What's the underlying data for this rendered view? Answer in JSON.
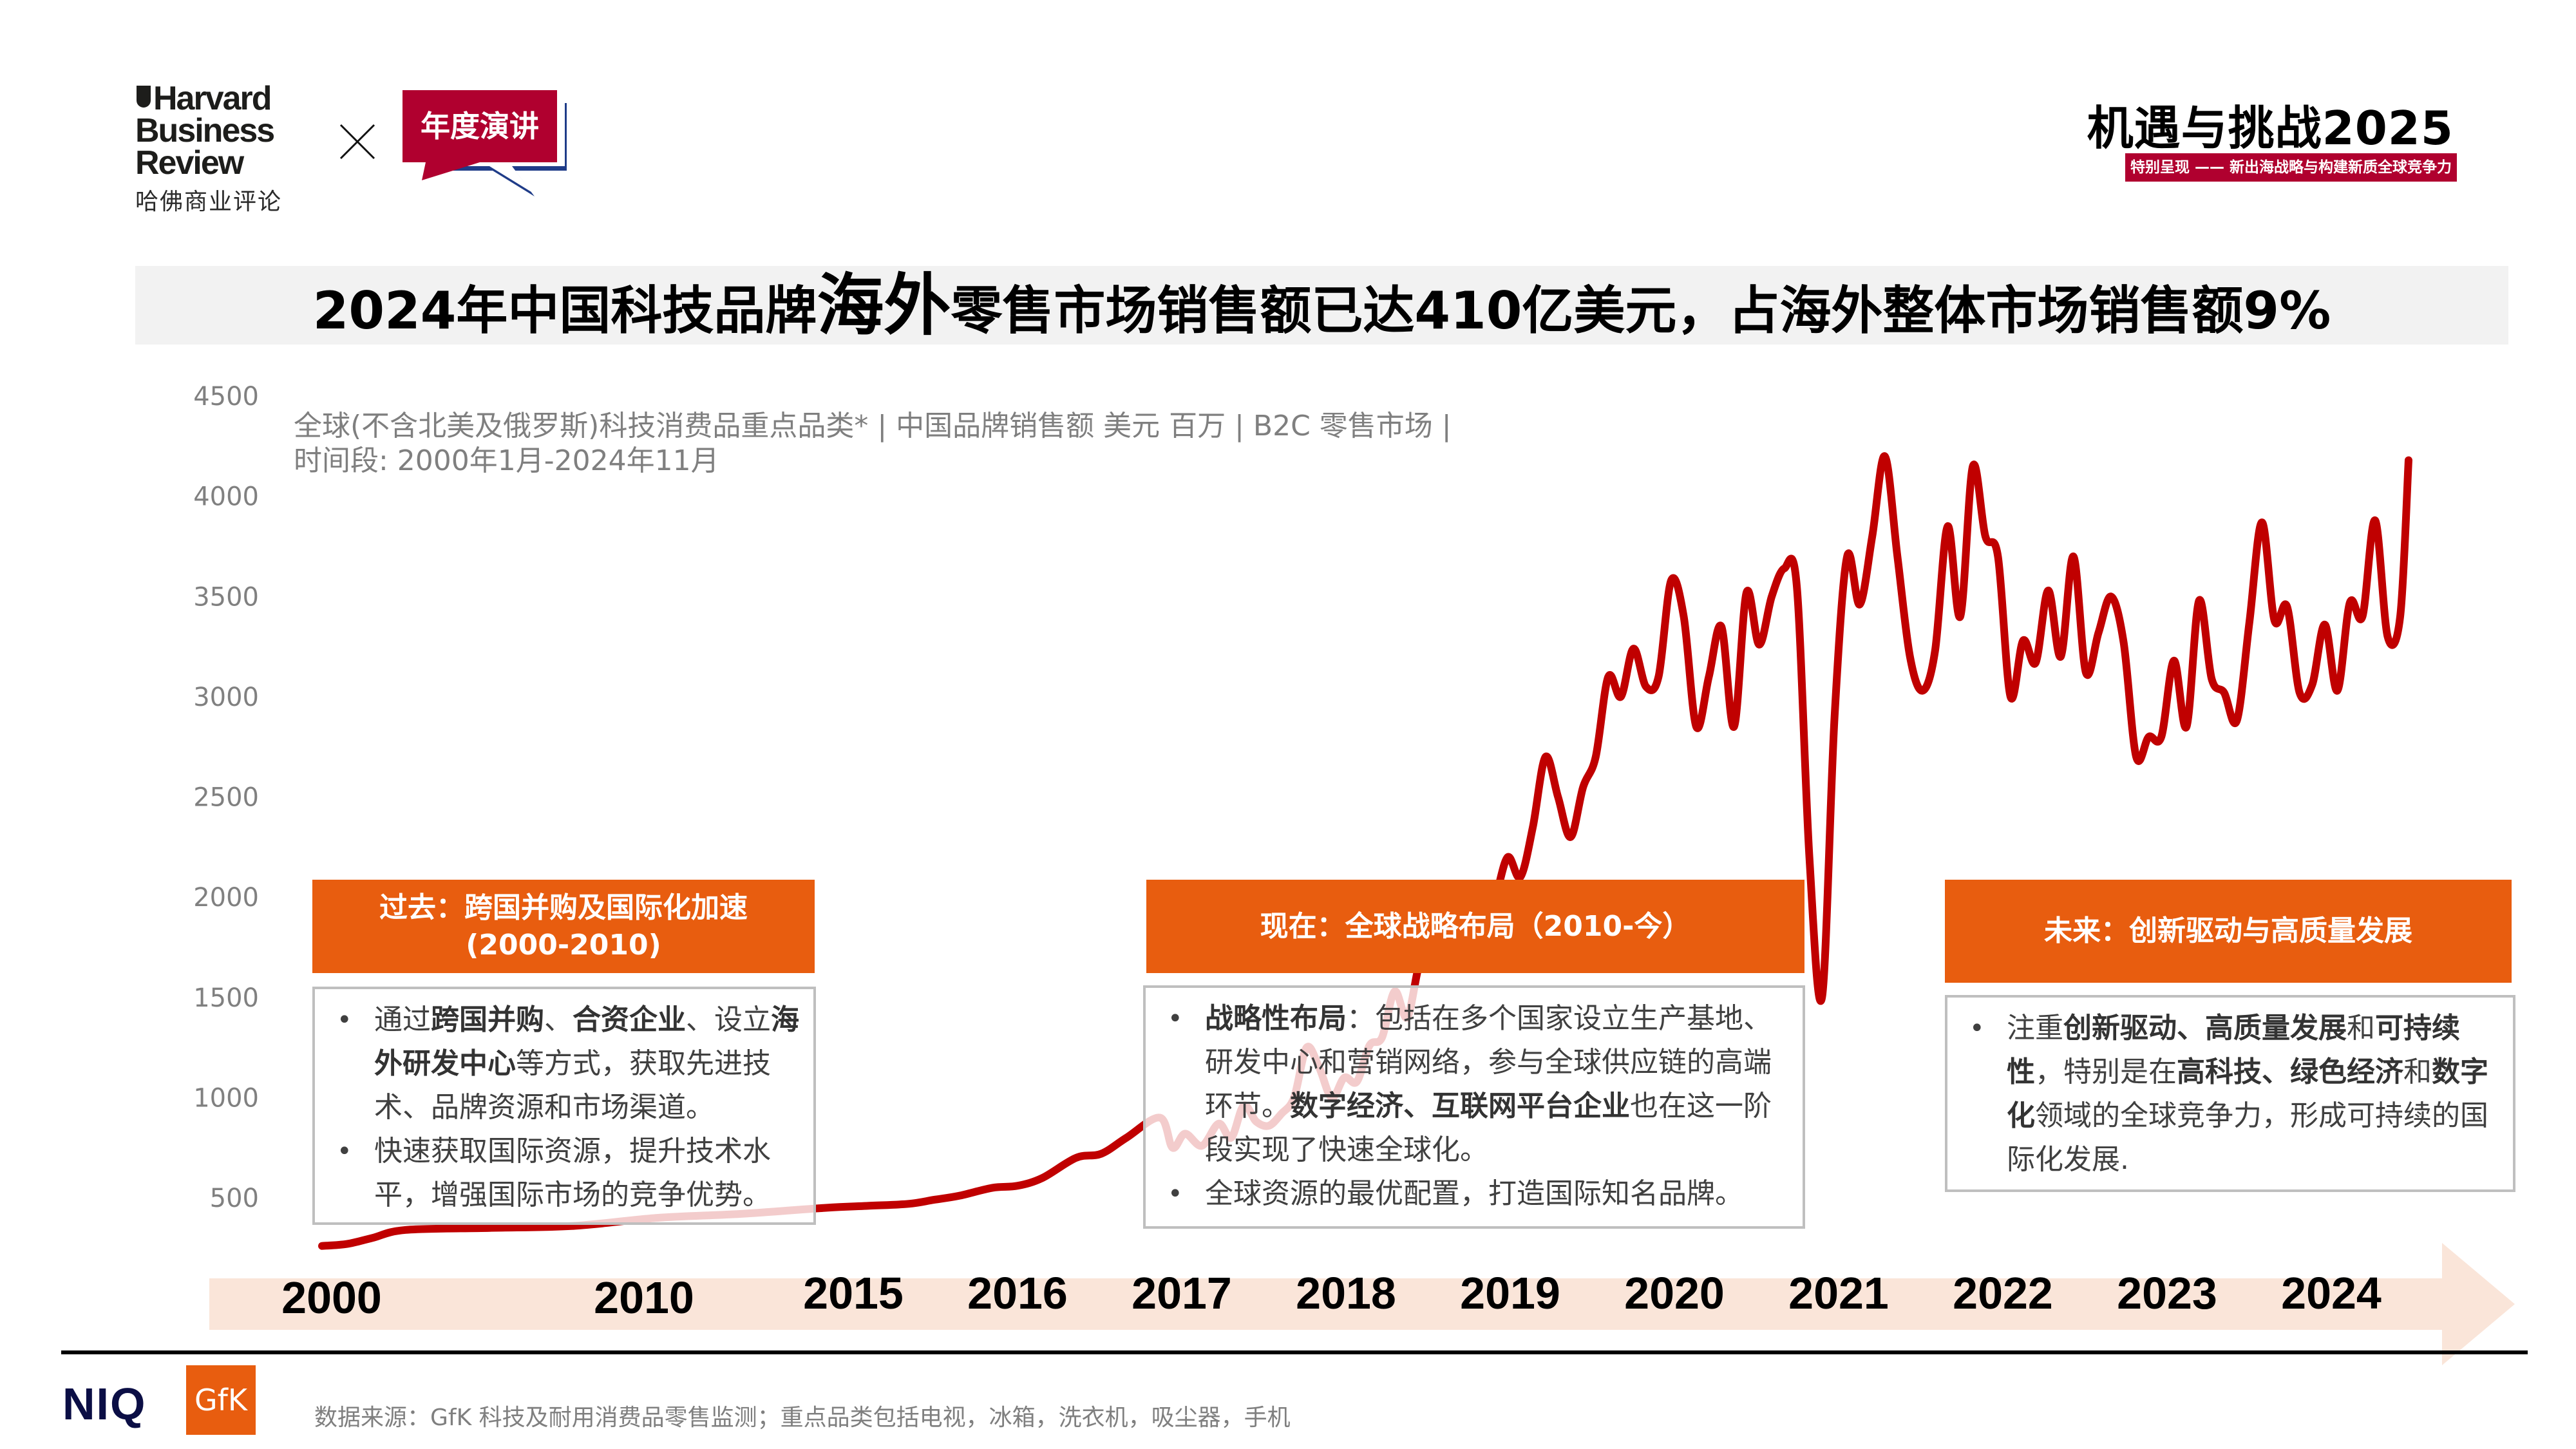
{
  "header": {
    "hbr_logo": [
      "Harvard",
      "Business",
      "Review"
    ],
    "hbr_cn": "哈佛商业评论",
    "times_symbol": "×",
    "speech_label": "年度演讲",
    "brand_title": "机遇与挑战2025",
    "brand_subtitle": "特别呈现 —— 新出海战略与构建新质全球竞争力"
  },
  "title": {
    "part1": "2024年中国科技品牌",
    "emph": "海外",
    "part2": "零售市场销售额已达410亿美元，占海外整体市场销售额9%"
  },
  "chart_data": {
    "type": "line",
    "title": "2024年中国科技品牌海外零售市场销售额已达410亿美元，占海外整体市场销售额9%",
    "subtitle_lines": [
      "全球(不含北美及俄罗斯)科技消费品重点品类* | 中国品牌销售额 美元 百万 | B2C 零售市场 |",
      "时间段: 2000年1月-2024年11月"
    ],
    "xlabel": "",
    "ylabel": "",
    "ylim": [
      500,
      4500
    ],
    "yticks": [
      "4500",
      "4000",
      "3500",
      "3000",
      "2500",
      "2000",
      "1500",
      "1000",
      "500"
    ],
    "ytick_values": [
      4500,
      4000,
      3500,
      3000,
      2500,
      2000,
      1500,
      1000,
      500
    ],
    "x_categories": [
      "2000",
      "2010",
      "2015",
      "2016",
      "2017",
      "2018",
      "2019",
      "2020",
      "2021",
      "2022",
      "2023",
      "2024"
    ],
    "grid": false,
    "series": [
      {
        "name": "中国品牌销售额",
        "color": "#c00000",
        "x": [
          0,
          0.3,
          0.6,
          1,
          2,
          3,
          4,
          5,
          6,
          6.5,
          7,
          7.3,
          7.6,
          8,
          8.3,
          8.6,
          9,
          9.3,
          9.6,
          10,
          10.15,
          10.3,
          10.5,
          10.7,
          10.85,
          11,
          11.15,
          11.3,
          11.45,
          11.6,
          11.75,
          11.9,
          12.05,
          12.2,
          12.35,
          12.5,
          12.65,
          12.8,
          12.95,
          13.1,
          13.25,
          13.4,
          13.55,
          13.7,
          13.85,
          14,
          14.15,
          14.3,
          14.45,
          14.6,
          14.75,
          14.9,
          15.05,
          15.2,
          15.35,
          15.5,
          15.65,
          15.8,
          15.95,
          16.1,
          16.25,
          16.4,
          16.55,
          16.7,
          16.85,
          17,
          17.15,
          17.3,
          17.45,
          17.6,
          17.75,
          17.9,
          18.05,
          18.2,
          18.35,
          18.5,
          18.65,
          18.8,
          18.95,
          19.1,
          19.25,
          19.4,
          19.55,
          19.7,
          19.85,
          20,
          20.15,
          20.3,
          20.45,
          20.6,
          20.75,
          20.9,
          21.05,
          21.2,
          21.35,
          21.5,
          21.65,
          21.8,
          21.95,
          22.1,
          22.25,
          22.4,
          22.55,
          22.7,
          22.85,
          23,
          23.15,
          23.3,
          23.45,
          23.6,
          23.75,
          23.9,
          24.05,
          24.2,
          24.35,
          24.5,
          24.65,
          24.8,
          24.9
        ],
        "values": [
          260,
          270,
          300,
          340,
          350,
          360,
          400,
          420,
          450,
          460,
          470,
          490,
          510,
          550,
          560,
          600,
          700,
          720,
          800,
          900,
          750,
          820,
          760,
          870,
          800,
          960,
          880,
          860,
          920,
          1000,
          1250,
          1150,
          1000,
          1100,
          1080,
          1260,
          1300,
          1530,
          1400,
          1670,
          1700,
          1980,
          1850,
          1660,
          1900,
          2000,
          2200,
          2100,
          2350,
          2700,
          2500,
          2300,
          2550,
          2700,
          3100,
          3000,
          3240,
          3050,
          3100,
          3580,
          3400,
          2850,
          3100,
          3350,
          2850,
          3520,
          3260,
          3500,
          3640,
          3550,
          2200,
          1500,
          2900,
          3700,
          3460,
          3800,
          4200,
          3700,
          3200,
          3030,
          3230,
          3850,
          3400,
          4150,
          3800,
          3700,
          3000,
          3280,
          3170,
          3530,
          3200,
          3700,
          3120,
          3320,
          3500,
          3270,
          2700,
          2800,
          2800,
          3180,
          2850,
          3480,
          3090,
          3020,
          2880,
          3370,
          3870,
          3380,
          3450,
          3020,
          3060,
          3360,
          3030,
          3470,
          3400,
          3880,
          3300,
          3400,
          4180
        ]
      }
    ],
    "annotations": [
      {
        "heading": [
          "过去：跨国并购及国际化加速",
          "(2000-2010)"
        ],
        "bullets": [
          [
            {
              "t": "通过"
            },
            {
              "t": "跨国并购",
              "b": true
            },
            {
              "t": "、"
            },
            {
              "t": "合资企业",
              "b": true
            },
            {
              "t": "、设立"
            },
            {
              "t": "海外研发中心",
              "b": true
            },
            {
              "t": "等方式，获取先进技术、品牌资源和市场渠道。"
            }
          ],
          [
            {
              "t": "快速获取国际资源，提升技术水平，增强国际市场的竞争优势。"
            }
          ]
        ]
      },
      {
        "heading": [
          "现在：全球战略布局（2010-今）"
        ],
        "bullets": [
          [
            {
              "t": "战略性布局",
              "b": true
            },
            {
              "t": "：包括在多个国家设立生产基地、研发中心和营销网络，参与全球供应链的高端环节。"
            },
            {
              "t": "数字经济、互联网平台企业",
              "b": true
            },
            {
              "t": "也在这一阶段实现了快速全球化。"
            }
          ],
          [
            {
              "t": "全球资源的最优配置，打造国际知名品牌。"
            }
          ]
        ]
      },
      {
        "heading": [
          "未来：创新驱动与高质量发展"
        ],
        "bullets": [
          [
            {
              "t": "注重"
            },
            {
              "t": "创新驱动、高质量发展",
              "b": true
            },
            {
              "t": "和"
            },
            {
              "t": "可持续性",
              "b": true
            },
            {
              "t": "，特别是在"
            },
            {
              "t": "高科技、绿色经济",
              "b": true
            },
            {
              "t": "和"
            },
            {
              "t": "数字化",
              "b": true
            },
            {
              "t": "领域的全球竞争力，形成可持续的国际化发展."
            }
          ]
        ]
      }
    ]
  },
  "colors": {
    "line": "#c00000",
    "accent_orange": "#e85d0f",
    "brand_red": "#b0002f",
    "timeline_fill": "#fae5d9",
    "speech_red": "#b0002f",
    "speech_blue": "#1f3c88",
    "niq_navy": "#0b0e45"
  },
  "footer": {
    "niq_logo": "NIQ",
    "gfk_logo": "GfK",
    "source": "数据来源：GfK 科技及耐用消费品零售监测；重点品类包括电视，冰箱，洗衣机，吸尘器，手机"
  }
}
